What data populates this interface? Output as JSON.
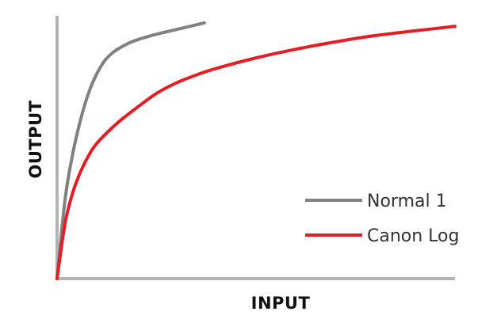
{
  "chart_data": {
    "type": "line",
    "title": "",
    "xlabel": "INPUT",
    "ylabel": "OUTPUT",
    "xlim": [
      0,
      100
    ],
    "ylim": [
      0,
      100
    ],
    "grid": false,
    "legend_placement": "bottom-right",
    "series": [
      {
        "name": "Normal 1",
        "color": "#808080",
        "x": [
          0,
          2,
          4,
          6,
          8,
          10,
          12,
          14,
          16,
          18,
          20,
          24,
          28,
          32,
          37
        ],
        "y": [
          0,
          30,
          48,
          61,
          71,
          78,
          83,
          86,
          88,
          89.6,
          90.8,
          92.6,
          94.1,
          95.5,
          97.3
        ]
      },
      {
        "name": "Canon Log",
        "color": "#e31e24",
        "x": [
          0,
          2,
          4,
          6,
          8,
          10,
          15,
          20,
          25,
          30,
          35,
          40,
          50,
          60,
          70,
          80,
          90,
          100
        ],
        "y": [
          0,
          21,
          33,
          41,
          47,
          51.5,
          59,
          65,
          70.5,
          74.5,
          77.5,
          80,
          84,
          87.3,
          90.1,
          92.5,
          94.3,
          96
        ]
      }
    ]
  }
}
